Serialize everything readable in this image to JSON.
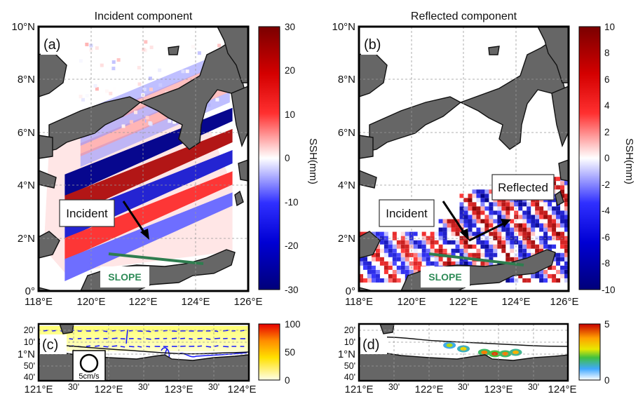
{
  "figure": {
    "panels": {
      "a": {
        "label": "(a)",
        "title": "Incident component",
        "colorbar": {
          "ticks": [
            "30",
            "20",
            "10",
            "0",
            "-10",
            "-20",
            "-30"
          ],
          "unit": "SSH(mm)",
          "range": [
            -30,
            30
          ]
        },
        "annotations": {
          "wave": "Incident",
          "slope": "SLOPE"
        }
      },
      "b": {
        "label": "(b)",
        "title": "Reflected component",
        "colorbar": {
          "ticks": [
            "10",
            "8",
            "6",
            "4",
            "2",
            "0",
            "-2",
            "-4",
            "-6",
            "-8",
            "-10"
          ],
          "unit": "SSH(mm)",
          "range": [
            -10,
            10
          ]
        },
        "annotations": {
          "incident": "Incident",
          "reflected": "Reflected",
          "slope": "SLOPE"
        }
      },
      "c": {
        "label": "(c)",
        "colorbar": {
          "ticks": [
            "100",
            "50",
            "0"
          ],
          "range": [
            0,
            100
          ]
        },
        "legend": "5cm/s"
      },
      "d": {
        "label": "(d)",
        "colorbar": {
          "ticks": [
            "5",
            "0"
          ],
          "range": [
            0,
            5
          ]
        }
      }
    },
    "axes": {
      "top_y": [
        "10°N",
        "8°N",
        "6°N",
        "4°N",
        "2°N",
        "0°"
      ],
      "top_x": [
        "118°E",
        "120°E",
        "122°E",
        "124°E",
        "126°E"
      ],
      "bottom_y": [
        "20'",
        "10'",
        "1°N",
        "50'",
        "40'"
      ],
      "bottom_x_c": [
        "121°E",
        "30'",
        "122°E",
        "30'",
        "123°E",
        "30'",
        "124°E"
      ],
      "bottom_x_d": [
        "121°E",
        "30'",
        "122°E",
        "30'",
        "123°E",
        "30'",
        "124°E"
      ]
    }
  },
  "chart_data": [
    {
      "type": "heatmap",
      "title": "Incident component",
      "panel": "(a)",
      "variable": "SSH (mm)",
      "xlim": [
        118,
        126
      ],
      "ylim": [
        0,
        10
      ],
      "xticks": [
        118,
        120,
        122,
        124,
        126
      ],
      "yticks": [
        0,
        2,
        4,
        6,
        8,
        10
      ],
      "clim": [
        -30,
        30
      ],
      "wave_bands": [
        {
          "sign": "negative",
          "amplitude": -28,
          "center_lat_at_119_5E": 4.2
        },
        {
          "sign": "positive",
          "amplitude": 26,
          "center_lat_at_119_5E": 3.4
        },
        {
          "sign": "negative",
          "amplitude": -24,
          "center_lat_at_119_5E": 2.6
        },
        {
          "sign": "positive",
          "amplitude": 20,
          "center_lat_at_119_5E": 1.8
        },
        {
          "sign": "negative",
          "amplitude": -16,
          "center_lat_at_119_5E": 1.0
        }
      ],
      "annotations": [
        "Incident",
        "SLOPE"
      ]
    },
    {
      "type": "heatmap",
      "title": "Reflected component",
      "panel": "(b)",
      "variable": "SSH (mm)",
      "xlim": [
        118,
        126
      ],
      "ylim": [
        0,
        10
      ],
      "xticks": [
        118,
        120,
        122,
        124,
        126
      ],
      "yticks": [
        0,
        2,
        4,
        6,
        8,
        10
      ],
      "clim": [
        -10,
        10
      ],
      "annotations": [
        "Incident",
        "Reflected",
        "SLOPE"
      ]
    },
    {
      "type": "heatmap",
      "panel": "(c)",
      "xlim": [
        121,
        124
      ],
      "ylim": [
        0.6,
        1.4
      ],
      "clim": [
        0,
        100
      ],
      "legend": "5cm/s"
    },
    {
      "type": "heatmap",
      "panel": "(d)",
      "xlim": [
        121,
        124
      ],
      "ylim": [
        0.6,
        1.4
      ],
      "clim": [
        0,
        5
      ],
      "hotspots": [
        {
          "lon": 122.3,
          "lat": 1.1,
          "value": 2.5
        },
        {
          "lon": 122.5,
          "lat": 1.05,
          "value": 3.0
        },
        {
          "lon": 122.8,
          "lat": 1.0,
          "value": 4.0
        },
        {
          "lon": 122.95,
          "lat": 0.98,
          "value": 4.5
        },
        {
          "lon": 123.1,
          "lat": 0.98,
          "value": 4.0
        },
        {
          "lon": 123.25,
          "lat": 1.0,
          "value": 3.5
        }
      ]
    }
  ]
}
